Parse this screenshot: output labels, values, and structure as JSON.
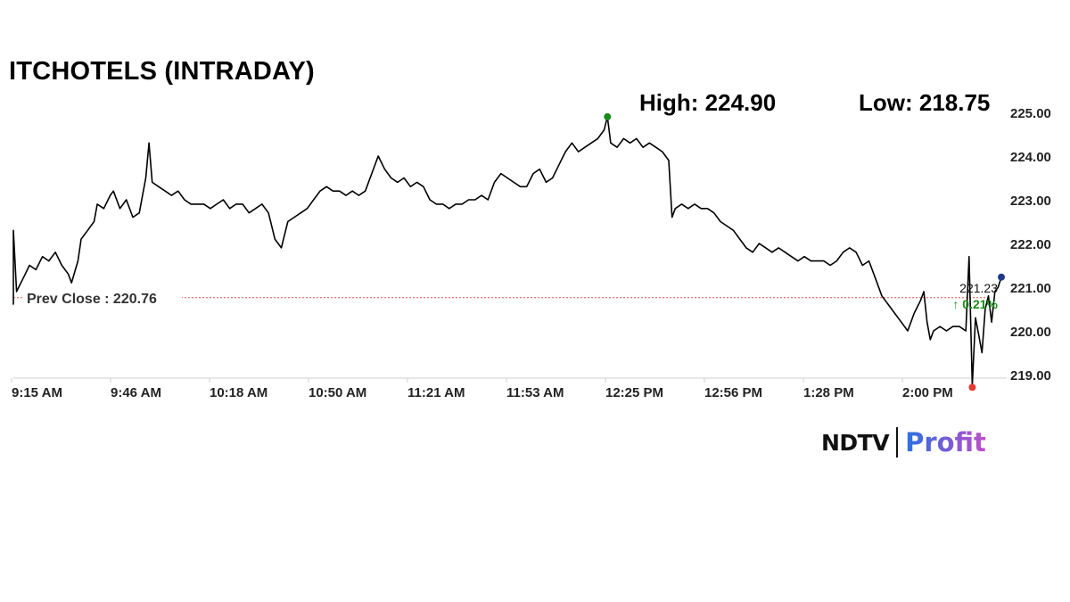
{
  "header": {
    "title": "ITCHOTELS (INTRADAY)",
    "high_label": "High: 224.90",
    "low_label": "Low: 218.75"
  },
  "chart_data": {
    "type": "line",
    "title": "ITCHOTELS (INTRADAY)",
    "xlabel": "",
    "ylabel": "",
    "x_ticks": [
      "9:15 AM",
      "9:46 AM",
      "10:18 AM",
      "10:50 AM",
      "11:21 AM",
      "11:53 AM",
      "12:25 PM",
      "12:56 PM",
      "1:28 PM",
      "2:00 PM"
    ],
    "y_ticks": [
      "225.00",
      "224.00",
      "223.00",
      "222.00",
      "221.00",
      "220.00",
      "219.00"
    ],
    "ylim": [
      219,
      225
    ],
    "xlim": [
      "9:15",
      "14:21"
    ],
    "grid": false,
    "prev_close": {
      "label": "Prev Close : 220.76",
      "value": 220.76,
      "color": "#d9534f"
    },
    "high": {
      "time": "12:19",
      "value": 224.9,
      "color": "#1a8c1a"
    },
    "low": {
      "time": "14:12",
      "value": 218.75,
      "color": "#e53935"
    },
    "last": {
      "time": "14:21",
      "value": 221.23,
      "price_label": "221.23",
      "change_label": "↑ 0.21%",
      "color": "#1e3a8a"
    },
    "series": [
      {
        "color": "#000000",
        "points": [
          [
            "9:15",
            220.6
          ],
          [
            "9:15",
            222.3
          ],
          [
            "9:16",
            220.9
          ],
          [
            "9:18",
            221.2
          ],
          [
            "9:20",
            221.5
          ],
          [
            "9:22",
            221.4
          ],
          [
            "9:24",
            221.7
          ],
          [
            "9:26",
            221.6
          ],
          [
            "9:28",
            221.8
          ],
          [
            "9:30",
            221.5
          ],
          [
            "9:32",
            221.3
          ],
          [
            "9:33",
            221.1
          ],
          [
            "9:35",
            221.6
          ],
          [
            "9:36",
            222.1
          ],
          [
            "9:38",
            222.3
          ],
          [
            "9:40",
            222.5
          ],
          [
            "9:41",
            222.9
          ],
          [
            "9:43",
            222.8
          ],
          [
            "9:45",
            223.1
          ],
          [
            "9:46",
            223.2
          ],
          [
            "9:48",
            222.8
          ],
          [
            "9:50",
            223.0
          ],
          [
            "9:52",
            222.6
          ],
          [
            "9:54",
            222.7
          ],
          [
            "9:56",
            223.5
          ],
          [
            "9:57",
            224.3
          ],
          [
            "9:58",
            223.4
          ],
          [
            "10:00",
            223.3
          ],
          [
            "10:02",
            223.2
          ],
          [
            "10:04",
            223.1
          ],
          [
            "10:06",
            223.2
          ],
          [
            "10:08",
            223.0
          ],
          [
            "10:10",
            222.9
          ],
          [
            "10:12",
            222.9
          ],
          [
            "10:14",
            222.9
          ],
          [
            "10:16",
            222.8
          ],
          [
            "10:18",
            222.9
          ],
          [
            "10:20",
            223.0
          ],
          [
            "10:22",
            222.8
          ],
          [
            "10:24",
            222.9
          ],
          [
            "10:26",
            222.9
          ],
          [
            "10:28",
            222.7
          ],
          [
            "10:30",
            222.8
          ],
          [
            "10:32",
            222.9
          ],
          [
            "10:34",
            222.7
          ],
          [
            "10:36",
            222.1
          ],
          [
            "10:38",
            221.9
          ],
          [
            "10:40",
            222.5
          ],
          [
            "10:42",
            222.6
          ],
          [
            "10:44",
            222.7
          ],
          [
            "10:46",
            222.8
          ],
          [
            "10:48",
            223.0
          ],
          [
            "10:50",
            223.2
          ],
          [
            "10:52",
            223.3
          ],
          [
            "10:54",
            223.2
          ],
          [
            "10:56",
            223.2
          ],
          [
            "10:58",
            223.1
          ],
          [
            "11:00",
            223.2
          ],
          [
            "11:02",
            223.1
          ],
          [
            "11:04",
            223.2
          ],
          [
            "11:06",
            223.6
          ],
          [
            "11:08",
            224.0
          ],
          [
            "11:10",
            223.7
          ],
          [
            "11:12",
            223.5
          ],
          [
            "11:14",
            223.4
          ],
          [
            "11:16",
            223.5
          ],
          [
            "11:18",
            223.3
          ],
          [
            "11:20",
            223.4
          ],
          [
            "11:22",
            223.3
          ],
          [
            "11:24",
            223.0
          ],
          [
            "11:26",
            222.9
          ],
          [
            "11:28",
            222.9
          ],
          [
            "11:30",
            222.8
          ],
          [
            "11:32",
            222.9
          ],
          [
            "11:34",
            222.9
          ],
          [
            "11:36",
            223.0
          ],
          [
            "11:38",
            223.0
          ],
          [
            "11:40",
            223.1
          ],
          [
            "11:42",
            223.0
          ],
          [
            "11:44",
            223.4
          ],
          [
            "11:46",
            223.6
          ],
          [
            "11:48",
            223.5
          ],
          [
            "11:50",
            223.4
          ],
          [
            "11:52",
            223.3
          ],
          [
            "11:54",
            223.3
          ],
          [
            "11:56",
            223.6
          ],
          [
            "11:58",
            223.7
          ],
          [
            "12:00",
            223.4
          ],
          [
            "12:02",
            223.5
          ],
          [
            "12:04",
            223.8
          ],
          [
            "12:06",
            224.1
          ],
          [
            "12:08",
            224.3
          ],
          [
            "12:10",
            224.1
          ],
          [
            "12:12",
            224.2
          ],
          [
            "12:14",
            224.3
          ],
          [
            "12:16",
            224.4
          ],
          [
            "12:18",
            224.6
          ],
          [
            "12:19",
            224.9
          ],
          [
            "12:20",
            224.3
          ],
          [
            "12:22",
            224.2
          ],
          [
            "12:24",
            224.4
          ],
          [
            "12:26",
            224.3
          ],
          [
            "12:28",
            224.4
          ],
          [
            "12:30",
            224.2
          ],
          [
            "12:32",
            224.3
          ],
          [
            "12:34",
            224.2
          ],
          [
            "12:36",
            224.1
          ],
          [
            "12:38",
            223.9
          ],
          [
            "12:39",
            222.6
          ],
          [
            "12:40",
            222.8
          ],
          [
            "12:42",
            222.9
          ],
          [
            "12:44",
            222.8
          ],
          [
            "12:46",
            222.9
          ],
          [
            "12:48",
            222.8
          ],
          [
            "12:50",
            222.8
          ],
          [
            "12:52",
            222.7
          ],
          [
            "12:54",
            222.5
          ],
          [
            "12:56",
            222.4
          ],
          [
            "12:58",
            222.3
          ],
          [
            "13:00",
            222.1
          ],
          [
            "13:02",
            221.9
          ],
          [
            "13:04",
            221.8
          ],
          [
            "13:06",
            222.0
          ],
          [
            "13:08",
            221.9
          ],
          [
            "13:10",
            221.8
          ],
          [
            "13:12",
            221.9
          ],
          [
            "13:14",
            221.8
          ],
          [
            "13:16",
            221.7
          ],
          [
            "13:18",
            221.6
          ],
          [
            "13:20",
            221.7
          ],
          [
            "13:22",
            221.6
          ],
          [
            "13:24",
            221.6
          ],
          [
            "13:26",
            221.6
          ],
          [
            "13:28",
            221.5
          ],
          [
            "13:30",
            221.6
          ],
          [
            "13:32",
            221.8
          ],
          [
            "13:34",
            221.9
          ],
          [
            "13:36",
            221.8
          ],
          [
            "13:38",
            221.5
          ],
          [
            "13:40",
            221.6
          ],
          [
            "13:42",
            221.2
          ],
          [
            "13:44",
            220.8
          ],
          [
            "13:46",
            220.6
          ],
          [
            "13:48",
            220.4
          ],
          [
            "13:50",
            220.2
          ],
          [
            "13:52",
            220.0
          ],
          [
            "13:54",
            220.4
          ],
          [
            "13:56",
            220.7
          ],
          [
            "13:57",
            220.9
          ],
          [
            "13:58",
            220.2
          ],
          [
            "13:59",
            219.8
          ],
          [
            "14:00",
            220.0
          ],
          [
            "14:02",
            220.1
          ],
          [
            "14:04",
            220.0
          ],
          [
            "14:06",
            220.1
          ],
          [
            "14:08",
            220.1
          ],
          [
            "14:10",
            220.0
          ],
          [
            "14:11",
            221.7
          ],
          [
            "14:12",
            218.75
          ],
          [
            "14:13",
            220.3
          ],
          [
            "14:14",
            219.9
          ],
          [
            "14:15",
            219.5
          ],
          [
            "14:16",
            220.5
          ],
          [
            "14:17",
            220.8
          ],
          [
            "14:18",
            220.2
          ],
          [
            "14:19",
            220.9
          ],
          [
            "14:20",
            221.0
          ],
          [
            "14:21",
            221.23
          ]
        ]
      }
    ]
  },
  "brand": {
    "ndtv": "NDTV",
    "profit": "Profit"
  }
}
